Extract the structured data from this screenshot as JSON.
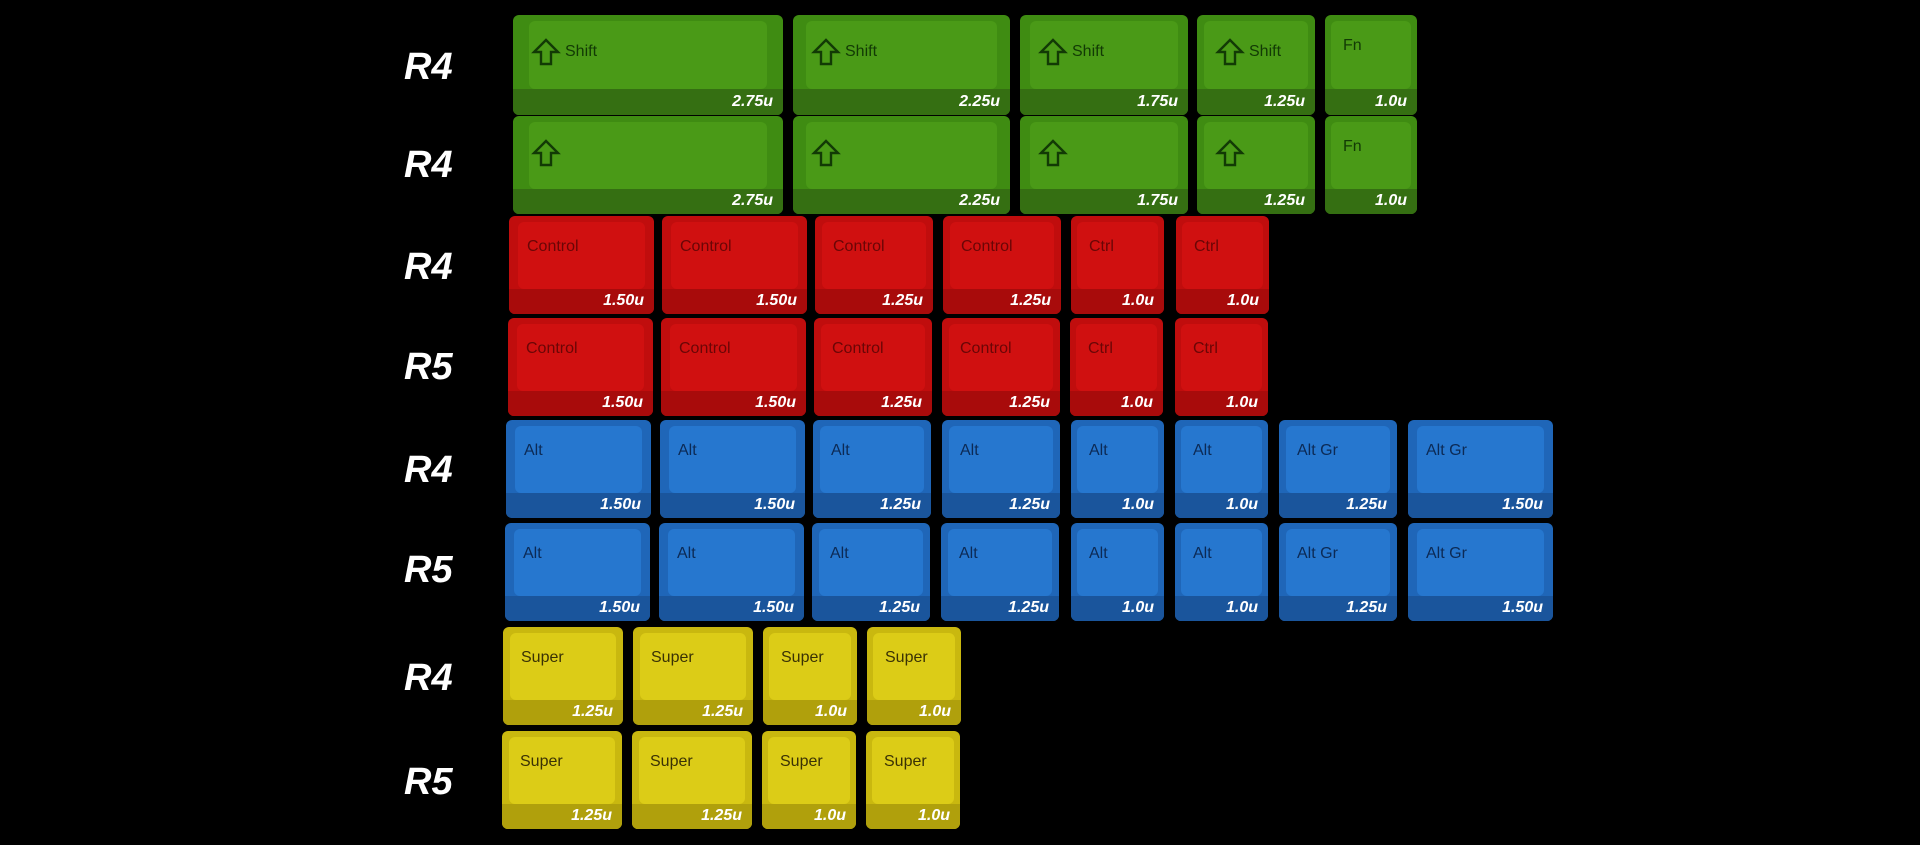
{
  "rows": [
    {
      "label": "R4",
      "color": "#4a9a17",
      "keys": [
        {
          "legend": "Shift",
          "icon": "shift-arrow-icon",
          "size": "2.75u"
        },
        {
          "legend": "Shift",
          "icon": "shift-arrow-icon",
          "size": "2.25u"
        },
        {
          "legend": "Shift",
          "icon": "shift-arrow-icon",
          "size": "1.75u"
        },
        {
          "legend": "Shift",
          "icon": "shift-arrow-icon",
          "size": "1.25u"
        },
        {
          "legend": "Fn",
          "icon": "",
          "size": "1.0u"
        }
      ]
    },
    {
      "label": "R4",
      "color": "#4a9a17",
      "keys": [
        {
          "legend": "",
          "icon": "shift-arrow-icon",
          "size": "2.75u"
        },
        {
          "legend": "",
          "icon": "shift-arrow-icon",
          "size": "2.25u"
        },
        {
          "legend": "",
          "icon": "shift-arrow-icon",
          "size": "1.75u"
        },
        {
          "legend": "",
          "icon": "shift-arrow-icon",
          "size": "1.25u"
        },
        {
          "legend": "Fn",
          "icon": "",
          "size": "1.0u"
        }
      ]
    },
    {
      "label": "R4",
      "color": "#d01010",
      "keys": [
        {
          "legend": "Control",
          "size": "1.50u"
        },
        {
          "legend": "Control",
          "size": "1.50u"
        },
        {
          "legend": "Control",
          "size": "1.25u"
        },
        {
          "legend": "Control",
          "size": "1.25u"
        },
        {
          "legend": "Ctrl",
          "size": "1.0u"
        },
        {
          "legend": "Ctrl",
          "size": "1.0u"
        }
      ]
    },
    {
      "label": "R5",
      "color": "#d01010",
      "keys": [
        {
          "legend": "Control",
          "size": "1.50u"
        },
        {
          "legend": "Control",
          "size": "1.50u"
        },
        {
          "legend": "Control",
          "size": "1.25u"
        },
        {
          "legend": "Control",
          "size": "1.25u"
        },
        {
          "legend": "Ctrl",
          "size": "1.0u"
        },
        {
          "legend": "Ctrl",
          "size": "1.0u"
        }
      ]
    },
    {
      "label": "R4",
      "color": "#2677cf",
      "keys": [
        {
          "legend": "Alt",
          "size": "1.50u"
        },
        {
          "legend": "Alt",
          "size": "1.50u"
        },
        {
          "legend": "Alt",
          "size": "1.25u"
        },
        {
          "legend": "Alt",
          "size": "1.25u"
        },
        {
          "legend": "Alt",
          "size": "1.0u"
        },
        {
          "legend": "Alt",
          "size": "1.0u"
        },
        {
          "legend": "Alt Gr",
          "size": "1.25u"
        },
        {
          "legend": "Alt Gr",
          "size": "1.50u"
        }
      ]
    },
    {
      "label": "R5",
      "color": "#2677cf",
      "keys": [
        {
          "legend": "Alt",
          "size": "1.50u"
        },
        {
          "legend": "Alt",
          "size": "1.50u"
        },
        {
          "legend": "Alt",
          "size": "1.25u"
        },
        {
          "legend": "Alt",
          "size": "1.25u"
        },
        {
          "legend": "Alt",
          "size": "1.0u"
        },
        {
          "legend": "Alt",
          "size": "1.0u"
        },
        {
          "legend": "Alt Gr",
          "size": "1.25u"
        },
        {
          "legend": "Alt Gr",
          "size": "1.50u"
        }
      ]
    },
    {
      "label": "R4",
      "color": "#dccc17",
      "keys": [
        {
          "legend": "Super",
          "size": "1.25u"
        },
        {
          "legend": "Super",
          "size": "1.25u"
        },
        {
          "legend": "Super",
          "size": "1.0u"
        },
        {
          "legend": "Super",
          "size": "1.0u"
        }
      ]
    },
    {
      "label": "R5",
      "color": "#dccc17",
      "keys": [
        {
          "legend": "Super",
          "size": "1.25u"
        },
        {
          "legend": "Super",
          "size": "1.25u"
        },
        {
          "legend": "Super",
          "size": "1.0u"
        },
        {
          "legend": "Super",
          "size": "1.0u"
        }
      ]
    }
  ]
}
